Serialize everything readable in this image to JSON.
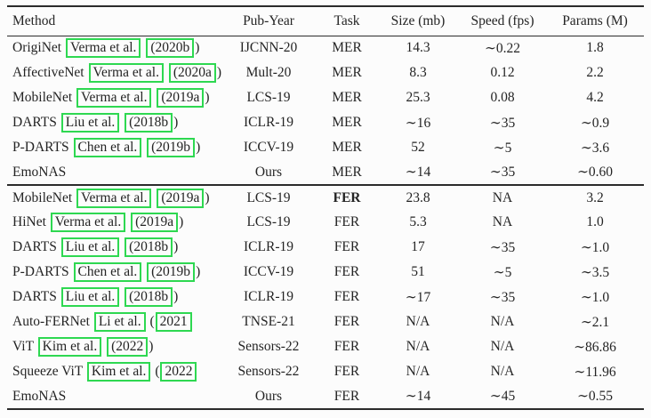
{
  "colors": {
    "citation_box": "#2ed851",
    "text": "#242424",
    "rule": "#2b2b2b",
    "background": "#fcfcfc"
  },
  "table": {
    "columns": [
      "Method",
      "Pub-Year",
      "Task",
      "Size (mb)",
      "Speed (fps)",
      "Params (M)"
    ],
    "sections": [
      {
        "rows": [
          {
            "method": {
              "prefix": "OrigiNet ",
              "author": "Verma et al.",
              "year_pre": "",
              "year": "(2020b",
              "suffix": ")"
            },
            "pub_year": "IJCNN-20",
            "task": "MER",
            "size": "14.3",
            "speed": "∼0.22",
            "params": "1.8",
            "bold": false,
            "task_bold": false
          },
          {
            "method": {
              "prefix": "AffectiveNet ",
              "author": "Verma et al.",
              "year_pre": "",
              "year": "(2020a",
              "suffix": ")"
            },
            "pub_year": "Mult-20",
            "task": "MER",
            "size": "8.3",
            "speed": "0.12",
            "params": "2.2",
            "bold": false,
            "task_bold": false
          },
          {
            "method": {
              "prefix": "MobileNet ",
              "author": "Verma et al.",
              "year_pre": "",
              "year": "(2019a",
              "suffix": ")"
            },
            "pub_year": "LCS-19",
            "task": "MER",
            "size": "25.3",
            "speed": "0.08",
            "params": "4.2",
            "bold": false,
            "task_bold": false
          },
          {
            "method": {
              "prefix": "DARTS ",
              "author": "Liu et al.",
              "year_pre": "",
              "year": "(2018b",
              "suffix": ")"
            },
            "pub_year": "ICLR-19",
            "task": "MER",
            "size": "∼16",
            "speed": "∼35",
            "params": "∼0.9",
            "bold": false,
            "task_bold": false
          },
          {
            "method": {
              "prefix": "P-DARTS ",
              "author": "Chen et al.",
              "year_pre": "",
              "year": "(2019b",
              "suffix": ")"
            },
            "pub_year": "ICCV-19",
            "task": "MER",
            "size": "52",
            "speed": "∼5",
            "params": "∼3.6",
            "bold": false,
            "task_bold": false
          },
          {
            "method": {
              "prefix": "EmoNAS",
              "author": null,
              "year_pre": "",
              "year": null,
              "suffix": ""
            },
            "pub_year": "Ours",
            "task": "MER",
            "size": "∼14",
            "speed": "∼35",
            "params": "∼0.60",
            "bold": true,
            "task_bold": false
          }
        ]
      },
      {
        "rows": [
          {
            "method": {
              "prefix": "MobileNet ",
              "author": "Verma et al.",
              "year_pre": "",
              "year": "(2019a",
              "suffix": ")"
            },
            "pub_year": "LCS-19",
            "task": "FER",
            "size": "23.8",
            "speed": "NA",
            "params": "3.2",
            "bold": false,
            "task_bold": true
          },
          {
            "method": {
              "prefix": "HiNet ",
              "author": "Verma et al.",
              "year_pre": "",
              "year": "(2019a",
              "suffix": ")"
            },
            "pub_year": "LCS-19",
            "task": "FER",
            "size": "5.3",
            "speed": "NA",
            "params": "1.0",
            "bold": false,
            "task_bold": false
          },
          {
            "method": {
              "prefix": "DARTS ",
              "author": "Liu et al.",
              "year_pre": "",
              "year": "(2018b",
              "suffix": ")"
            },
            "pub_year": "ICLR-19",
            "task": "FER",
            "size": "17",
            "speed": "∼35",
            "params": "∼1.0",
            "bold": false,
            "task_bold": false
          },
          {
            "method": {
              "prefix": "P-DARTS ",
              "author": "Chen et al.",
              "year_pre": "",
              "year": "(2019b",
              "suffix": ")"
            },
            "pub_year": "ICCV-19",
            "task": "FER",
            "size": "51",
            "speed": "∼5",
            "params": "∼3.5",
            "bold": false,
            "task_bold": false
          },
          {
            "method": {
              "prefix": "DARTS ",
              "author": "Liu et al.",
              "year_pre": "",
              "year": "(2018b",
              "suffix": ")"
            },
            "pub_year": "ICLR-19",
            "task": "FER",
            "size": "∼17",
            "speed": "∼35",
            "params": "∼1.0",
            "bold": false,
            "task_bold": false
          },
          {
            "method": {
              "prefix": "Auto-FERNet ",
              "author": "Li et al.",
              "year_pre": "(",
              "year": "2021",
              "suffix": ""
            },
            "pub_year": "TNSE-21",
            "task": "FER",
            "size": "N/A",
            "speed": "N/A",
            "params": "∼2.1",
            "bold": false,
            "task_bold": false
          },
          {
            "method": {
              "prefix": "ViT ",
              "author": "Kim et al.",
              "year_pre": "",
              "year": "(2022",
              "suffix": ")"
            },
            "pub_year": "Sensors-22",
            "task": "FER",
            "size": "N/A",
            "speed": "N/A",
            "params": "∼86.86",
            "bold": false,
            "task_bold": false
          },
          {
            "method": {
              "prefix": "Squeeze ViT ",
              "author": "Kim et al.",
              "year_pre": "(",
              "year": "2022",
              "suffix": ""
            },
            "pub_year": "Sensors-22",
            "task": "FER",
            "size": "N/A",
            "speed": "N/A",
            "params": "∼11.96",
            "bold": false,
            "task_bold": false
          },
          {
            "method": {
              "prefix": "EmoNAS",
              "author": null,
              "year_pre": "",
              "year": null,
              "suffix": ""
            },
            "pub_year": "Ours",
            "task": "FER",
            "size": "∼14",
            "speed": "∼45",
            "params": "∼0.55",
            "bold": true,
            "task_bold": false
          }
        ]
      }
    ]
  }
}
